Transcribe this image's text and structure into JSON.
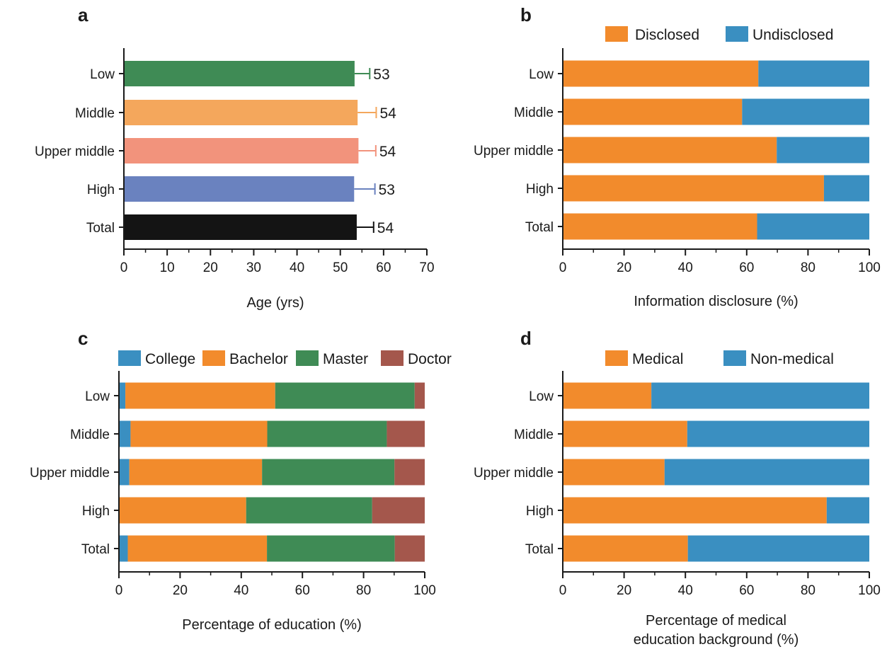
{
  "chart_data": [
    {
      "panel": "a",
      "type": "bar",
      "orientation": "horizontal",
      "categories": [
        "Low",
        "Middle",
        "Upper middle",
        "High",
        "Total"
      ],
      "values": [
        53.3,
        54.0,
        54.2,
        53.2,
        53.8
      ],
      "error_plus": [
        3.5,
        4.3,
        4.0,
        4.8,
        3.9
      ],
      "data_labels": [
        "53",
        "54",
        "54",
        "53",
        "54"
      ],
      "bar_colors": [
        "#3f8b55",
        "#f4a75c",
        "#f2937c",
        "#6a82bf",
        "#141414"
      ],
      "xlabel": "Age (yrs)",
      "xlim": [
        0,
        70
      ],
      "xticks": [
        0,
        10,
        20,
        30,
        40,
        50,
        60,
        70
      ],
      "grid": false
    },
    {
      "panel": "b",
      "type": "bar",
      "orientation": "horizontal",
      "stacked": true,
      "categories": [
        "Low",
        "Middle",
        "Upper middle",
        "High",
        "Total"
      ],
      "series": [
        {
          "name": "Disclosed",
          "color": "#f28b2c",
          "values": [
            63.8,
            58.5,
            69.8,
            85.2,
            63.4
          ]
        },
        {
          "name": "Undisclosed",
          "color": "#3a8fc1",
          "values": [
            36.2,
            41.5,
            30.2,
            14.8,
            36.6
          ]
        }
      ],
      "xlabel": "Information disclosure (%)",
      "xlim": [
        0,
        100
      ],
      "xticks": [
        0,
        20,
        40,
        60,
        80,
        100
      ],
      "legend": "top",
      "grid": false
    },
    {
      "panel": "c",
      "type": "bar",
      "orientation": "horizontal",
      "stacked": true,
      "categories": [
        "Low",
        "Middle",
        "Upper middle",
        "High",
        "Total"
      ],
      "series": [
        {
          "name": "College",
          "color": "#3a8fc1",
          "values": [
            2.1,
            3.8,
            3.4,
            0.0,
            2.9
          ]
        },
        {
          "name": "Bachelor",
          "color": "#f28b2c",
          "values": [
            49.0,
            44.7,
            43.4,
            41.6,
            45.5
          ]
        },
        {
          "name": "Master",
          "color": "#3f8b55",
          "values": [
            45.6,
            39.1,
            43.3,
            41.2,
            41.8
          ]
        },
        {
          "name": "Doctor",
          "color": "#a4574c",
          "values": [
            3.3,
            12.4,
            9.9,
            17.2,
            9.8
          ]
        }
      ],
      "xlabel": "Percentage of education (%)",
      "xlim": [
        0,
        100
      ],
      "xticks": [
        0,
        20,
        40,
        60,
        80,
        100
      ],
      "legend": "top",
      "grid": false
    },
    {
      "panel": "d",
      "type": "bar",
      "orientation": "horizontal",
      "stacked": true,
      "categories": [
        "Low",
        "Middle",
        "Upper middle",
        "High",
        "Total"
      ],
      "series": [
        {
          "name": "Medical",
          "color": "#f28b2c",
          "values": [
            28.9,
            40.6,
            33.2,
            86.1,
            40.8
          ]
        },
        {
          "name": "Non-medical",
          "color": "#3a8fc1",
          "values": [
            71.1,
            59.4,
            66.8,
            13.9,
            59.2
          ]
        }
      ],
      "xlabel_lines": [
        "Percentage of medical",
        "education background (%)"
      ],
      "xlim": [
        0,
        100
      ],
      "xticks": [
        0,
        20,
        40,
        60,
        80,
        100
      ],
      "legend": "top",
      "grid": false
    }
  ]
}
